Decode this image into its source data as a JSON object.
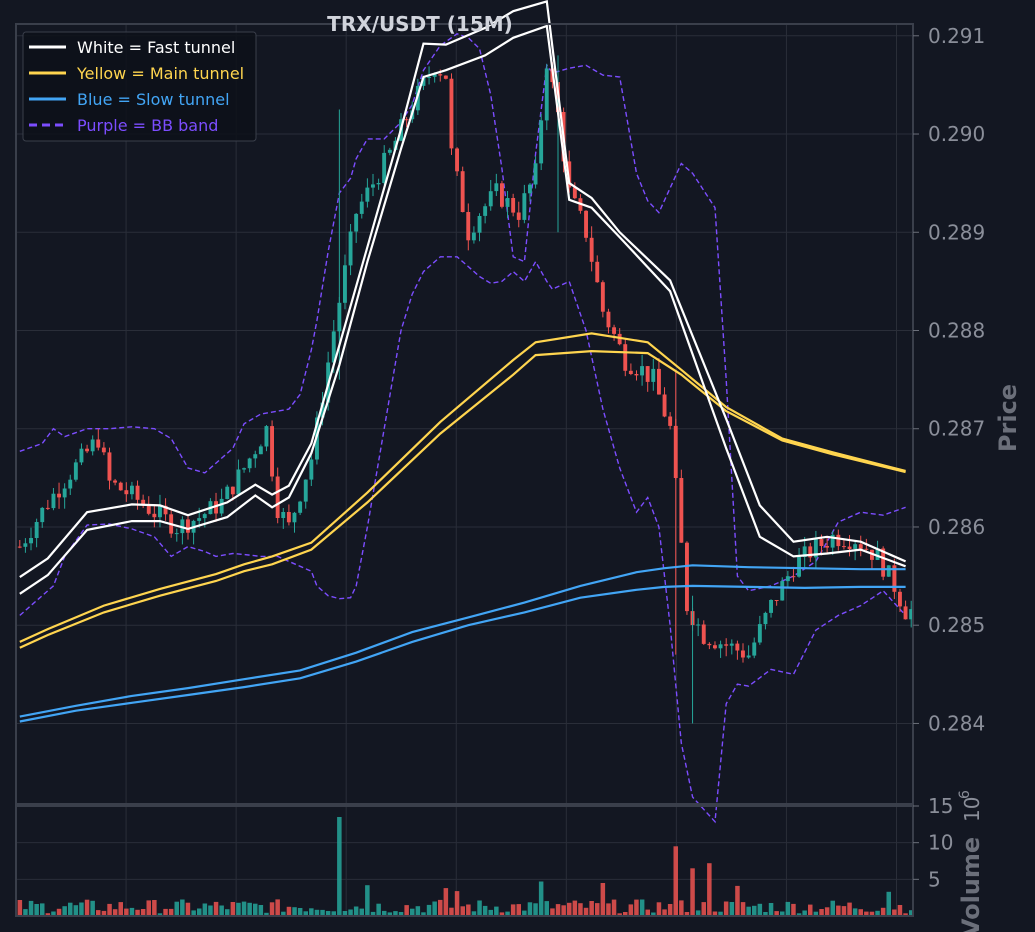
{
  "chart_data": {
    "type": "line",
    "title": "TRX/USDT (15M)",
    "colors": {
      "background": "#131722",
      "grid": "#2a2e39",
      "up": "#26a69a",
      "down": "#ef5350",
      "fast": "#ffffff",
      "main": "#ffd54f",
      "slow": "#42a5f5",
      "bb": "#7c4dff"
    },
    "price_axis": {
      "label": "Price",
      "ticks": [
        "0.291",
        "0.290",
        "0.289",
        "0.288",
        "0.287",
        "0.286",
        "0.285",
        "0.284"
      ],
      "ylim": [
        0.28318,
        0.29112
      ]
    },
    "volume_axis": {
      "label": "Volume",
      "exponent": "10",
      "exponent_power": "6",
      "ticks": [
        "15",
        "10",
        "5"
      ],
      "ylim": [
        0,
        15
      ]
    },
    "legend": {
      "placement": "top-left",
      "items": [
        {
          "label": "White = Fast tunnel",
          "color": "#ffffff",
          "dash": false
        },
        {
          "label": "Yellow = Main tunnel",
          "color": "#ffd54f",
          "dash": false
        },
        {
          "label": "Blue = Slow tunnel",
          "color": "#42a5f5",
          "dash": false
        },
        {
          "label": "Purple = BB band",
          "color": "#7c4dff",
          "dash": true
        }
      ]
    },
    "grid": true,
    "candle_count": 160,
    "series": [
      {
        "name": "White = Fast tunnel",
        "kind": "band",
        "x": [
          0,
          5,
          12,
          20,
          25,
          30,
          37,
          42,
          45,
          48,
          52,
          57,
          62,
          68,
          72,
          76,
          83,
          88,
          94,
          98,
          102,
          107,
          116,
          126,
          132,
          138,
          144,
          150,
          158
        ],
        "upper": [
          0.28549,
          0.28568,
          0.28615,
          0.28623,
          0.28622,
          0.28612,
          0.28625,
          0.28643,
          0.28633,
          0.28642,
          0.28685,
          0.28785,
          0.28885,
          0.29005,
          0.29092,
          0.29091,
          0.29108,
          0.29125,
          0.29135,
          0.2895,
          0.28935,
          0.289,
          0.28851,
          0.2871,
          0.28622,
          0.28585,
          0.2859,
          0.28585,
          0.28565
        ],
        "lower": [
          0.28532,
          0.28551,
          0.28597,
          0.28606,
          0.28606,
          0.28598,
          0.2861,
          0.28632,
          0.2862,
          0.2863,
          0.28675,
          0.28765,
          0.2887,
          0.28985,
          0.29058,
          0.29065,
          0.2908,
          0.29098,
          0.2911,
          0.28933,
          0.28925,
          0.28895,
          0.2884,
          0.2868,
          0.2859,
          0.2857,
          0.28573,
          0.28577,
          0.2856
        ]
      },
      {
        "name": "Yellow = Main tunnel",
        "kind": "band",
        "x": [
          0,
          5,
          15,
          25,
          35,
          40,
          45,
          52,
          62,
          75,
          88,
          92,
          102,
          112,
          118,
          126,
          136,
          145,
          158
        ],
        "upper": [
          0.28483,
          0.28496,
          0.2852,
          0.28537,
          0.28552,
          0.28562,
          0.2857,
          0.28584,
          0.28635,
          0.28707,
          0.2877,
          0.28788,
          0.28797,
          0.28788,
          0.2876,
          0.28722,
          0.2869,
          0.28676,
          0.28657
        ],
        "lower": [
          0.28477,
          0.2849,
          0.28513,
          0.2853,
          0.28545,
          0.28555,
          0.28562,
          0.28577,
          0.28625,
          0.28695,
          0.28755,
          0.28775,
          0.28779,
          0.28777,
          0.28755,
          0.28718,
          0.28688,
          0.28674,
          0.28656
        ]
      },
      {
        "name": "Blue = Slow tunnel",
        "kind": "band",
        "x": [
          0,
          10,
          20,
          30,
          40,
          50,
          60,
          70,
          80,
          90,
          100,
          110,
          115,
          120,
          130,
          140,
          150,
          158
        ],
        "upper": [
          0.28407,
          0.28418,
          0.28428,
          0.28436,
          0.28445,
          0.28454,
          0.28472,
          0.28493,
          0.28508,
          0.28523,
          0.2854,
          0.28554,
          0.28558,
          0.28561,
          0.28559,
          0.28558,
          0.28557,
          0.28557
        ],
        "lower": [
          0.28402,
          0.28413,
          0.28421,
          0.28429,
          0.28437,
          0.28446,
          0.28463,
          0.28483,
          0.285,
          0.28513,
          0.28528,
          0.28536,
          0.28539,
          0.2854,
          0.28539,
          0.28538,
          0.28539,
          0.28539
        ]
      },
      {
        "name": "Purple = BB band",
        "kind": "dashed",
        "x": [
          0,
          4,
          6,
          8,
          12,
          16,
          20,
          24,
          27,
          30,
          33,
          35,
          38,
          40,
          43,
          46,
          48,
          50,
          52,
          53,
          55,
          57,
          59,
          60,
          62,
          65,
          68,
          70,
          72,
          75,
          78,
          80,
          82,
          84,
          86,
          88,
          90,
          92,
          94,
          95,
          98,
          101,
          104,
          107,
          110,
          112,
          114,
          116,
          118,
          120,
          124,
          126,
          128,
          130,
          134,
          138,
          142,
          146,
          150,
          154,
          158
        ],
        "upper": [
          0.28677,
          0.28685,
          0.287,
          0.28692,
          0.287,
          0.287,
          0.28702,
          0.287,
          0.2869,
          0.2866,
          0.28655,
          0.28665,
          0.2868,
          0.28705,
          0.28715,
          0.28718,
          0.2872,
          0.28735,
          0.2878,
          0.2881,
          0.2888,
          0.2894,
          0.28955,
          0.28975,
          0.28995,
          0.28995,
          0.29012,
          0.2903,
          0.29065,
          0.2909,
          0.29102,
          0.29098,
          0.29087,
          0.2904,
          0.28965,
          0.28875,
          0.2887,
          0.2898,
          0.2907,
          0.29062,
          0.29067,
          0.2907,
          0.2906,
          0.29058,
          0.2896,
          0.28932,
          0.2892,
          0.28945,
          0.2897,
          0.2896,
          0.28925,
          0.2875,
          0.2855,
          0.28535,
          0.2854,
          0.2855,
          0.28565,
          0.28605,
          0.28615,
          0.28612,
          0.2862
        ],
        "lower": [
          0.2851,
          0.2853,
          0.2854,
          0.2857,
          0.28602,
          0.28603,
          0.28598,
          0.2859,
          0.2857,
          0.2858,
          0.28575,
          0.2857,
          0.28573,
          0.28572,
          0.2857,
          0.2857,
          0.28565,
          0.2856,
          0.28555,
          0.2854,
          0.2853,
          0.28527,
          0.28528,
          0.2854,
          0.286,
          0.287,
          0.288,
          0.28837,
          0.2886,
          0.28875,
          0.28875,
          0.28865,
          0.28855,
          0.28848,
          0.2885,
          0.2886,
          0.2885,
          0.2887,
          0.2885,
          0.28842,
          0.2885,
          0.288,
          0.2872,
          0.2866,
          0.28615,
          0.2863,
          0.286,
          0.285,
          0.2838,
          0.28325,
          0.283,
          0.2842,
          0.2844,
          0.28438,
          0.28455,
          0.2845,
          0.28495,
          0.2851,
          0.2852,
          0.28535,
          0.2851
        ]
      },
      {
        "name": "Price",
        "kind": "candles",
        "anchors_x": [
          0,
          5,
          9,
          14,
          16,
          20,
          24,
          28,
          32,
          36,
          40,
          44,
          46,
          48,
          52,
          56,
          60,
          64,
          66,
          70,
          74,
          76,
          77,
          80,
          82,
          85,
          89,
          92,
          94,
          96,
          98,
          101,
          104,
          108,
          111,
          113,
          116,
          118,
          119,
          120,
          122,
          126,
          130,
          134,
          138,
          141,
          145,
          149,
          153,
          156,
          158
        ],
        "anchors_close": [
          0.2858,
          0.28625,
          0.28655,
          0.2869,
          0.28645,
          0.28632,
          0.28615,
          0.286,
          0.2861,
          0.28625,
          0.2866,
          0.287,
          0.2862,
          0.286,
          0.2867,
          0.288,
          0.2892,
          0.2896,
          0.2898,
          0.2903,
          0.2907,
          0.2906,
          0.2898,
          0.289,
          0.2892,
          0.2894,
          0.2892,
          0.2896,
          0.29075,
          0.2902,
          0.2894,
          0.289,
          0.2882,
          0.2877,
          0.2876,
          0.2875,
          0.287,
          0.2858,
          0.2852,
          0.2851,
          0.2849,
          0.2848,
          0.2847,
          0.2852,
          0.2856,
          0.28575,
          0.2859,
          0.28588,
          0.2857,
          0.2854,
          0.28515
        ]
      },
      {
        "name": "Volume",
        "kind": "volume",
        "base": 1.2,
        "spikes": [
          {
            "i": 57,
            "v": 13.5
          },
          {
            "i": 62,
            "v": 4.2
          },
          {
            "i": 76,
            "v": 3.8
          },
          {
            "i": 78,
            "v": 3.4
          },
          {
            "i": 93,
            "v": 4.7
          },
          {
            "i": 104,
            "v": 4.5
          },
          {
            "i": 117,
            "v": 9.5
          },
          {
            "i": 120,
            "v": 6.5
          },
          {
            "i": 123,
            "v": 7.2
          },
          {
            "i": 128,
            "v": 4.1
          },
          {
            "i": 155,
            "v": 3.3
          }
        ]
      }
    ]
  }
}
